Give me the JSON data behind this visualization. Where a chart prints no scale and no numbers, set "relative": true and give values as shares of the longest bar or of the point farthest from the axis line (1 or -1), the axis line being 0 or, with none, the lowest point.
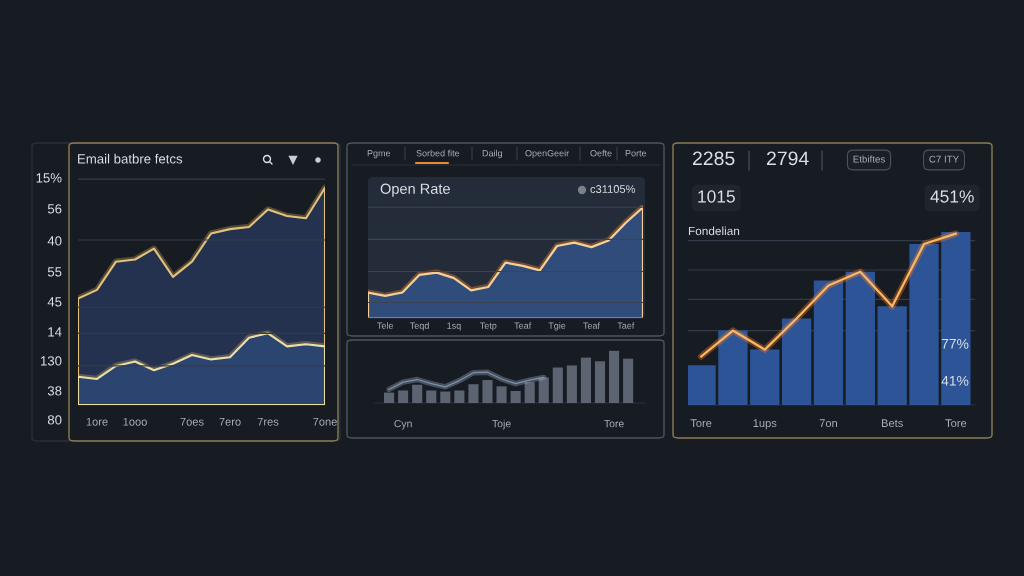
{
  "chart_data": [
    {
      "type": "area",
      "title": "Email batbre fetcs",
      "relative": true,
      "categories": [
        null,
        "1ore",
        null,
        "1ooo",
        null,
        null,
        "7oes",
        null,
        "7ero",
        null,
        "7res",
        null,
        null,
        "7one"
      ],
      "series": [
        {
          "color": "#243250",
          "values": [
            0.49,
            0.53,
            0.66,
            0.67,
            0.72,
            0.59,
            0.66,
            0.79,
            0.81,
            0.82,
            0.9,
            0.87,
            0.86,
            1
          ]
        },
        {
          "color": "#2b4470",
          "values": [
            0.13,
            0.12,
            0.18,
            0.2,
            0.16,
            0.19,
            0.23,
            0.21,
            0.22,
            0.31,
            0.33,
            0.27,
            0.28,
            0.27
          ]
        }
      ],
      "ref_lines": [
        {
          "axis": "y",
          "value": 1.04,
          "color": "#343b48"
        },
        {
          "axis": "y",
          "value": 0.76,
          "color": "#343b48"
        },
        {
          "axis": "y",
          "value": 0.45,
          "color": "#343b48"
        },
        {
          "axis": "y",
          "value": 0.33,
          "color": "#343b48"
        },
        {
          "axis": "y",
          "value": 0.18,
          "color": "#343b48"
        }
      ],
      "annotations": [
        "15%",
        "56",
        "40",
        "55",
        "45",
        "14",
        "130",
        "38",
        "80"
      ]
    },
    {
      "type": "area",
      "title": "Open Rate",
      "relative": true,
      "categories": [
        null,
        "Tele",
        null,
        "Teqd",
        null,
        "1sq",
        null,
        "Tetp",
        null,
        "Teaf",
        null,
        "Tgie",
        null,
        "Teaf",
        null,
        "Taef",
        null
      ],
      "series": [
        {
          "color": "#2f4c7a",
          "values": [
            0.23,
            0.2,
            0.23,
            0.39,
            0.41,
            0.36,
            0.25,
            0.28,
            0.5,
            0.47,
            0.43,
            0.65,
            0.68,
            0.64,
            0.7,
            0.86,
            1
          ]
        }
      ],
      "ref_lines": [
        {
          "axis": "y",
          "value": 1.0,
          "color": "#3a4354"
        },
        {
          "axis": "y",
          "value": 0.71,
          "color": "#3a4354"
        },
        {
          "axis": "y",
          "value": 0.42,
          "color": "#3a4354"
        },
        {
          "axis": "y",
          "value": 0.14,
          "color": "#3a4354"
        }
      ],
      "annotations": [
        "Pgme",
        "Sorbed fite",
        "Dailg",
        "OpenGeeir",
        "Oefte",
        "Porte",
        "c31105%"
      ]
    },
    {
      "type": "bar",
      "relative": true,
      "categories": [
        null,
        "Cyn",
        null,
        null,
        null,
        null,
        null,
        null,
        "Toje",
        null,
        null,
        null,
        null,
        null,
        null,
        null,
        "Tore",
        null
      ],
      "series": [
        {
          "type": "bar",
          "color": "#5c6472",
          "values": [
            0.2,
            0.24,
            0.35,
            0.24,
            0.22,
            0.24,
            0.36,
            0.44,
            0.32,
            0.23,
            0.4,
            0.49,
            0.68,
            0.72,
            0.87,
            0.8,
            1,
            0.85
          ]
        },
        {
          "type": "line",
          "color": "#7d90a8",
          "values": [
            0.26,
            0.4,
            0.45,
            0.37,
            0.31,
            0.43,
            0.58,
            0.59,
            0.46,
            0.37,
            0.44,
            0.49,
            null,
            null,
            null,
            null,
            null,
            null
          ]
        }
      ]
    },
    {
      "type": "bar",
      "title": "Fondelian",
      "relative": true,
      "categories": [
        "Tore",
        null,
        "1ups",
        null,
        "7on",
        null,
        "Bets",
        null,
        "Tore"
      ],
      "series": [
        {
          "type": "bar",
          "color": "#2d5496",
          "values": [
            0.23,
            0.43,
            0.32,
            0.5,
            0.72,
            0.77,
            0.57,
            0.93,
            1
          ]
        },
        {
          "type": "line",
          "color": "#f7b866",
          "values": [
            0.28,
            0.43,
            0.32,
            0.5,
            0.69,
            0.77,
            0.57,
            0.93,
            0.99
          ]
        }
      ],
      "ref_lines": [
        {
          "axis": "y",
          "value": 0.95,
          "color": "#343b48"
        },
        {
          "axis": "y",
          "value": 0.78,
          "color": "#343b48"
        },
        {
          "axis": "y",
          "value": 0.61,
          "color": "#343b48"
        },
        {
          "axis": "y",
          "value": 0.43,
          "color": "#343b48"
        }
      ],
      "annotations": [
        "2285",
        "2794",
        "Etbiftes",
        "C7 ITY",
        "1015",
        "451%",
        "77%",
        "41%"
      ]
    }
  ]
}
